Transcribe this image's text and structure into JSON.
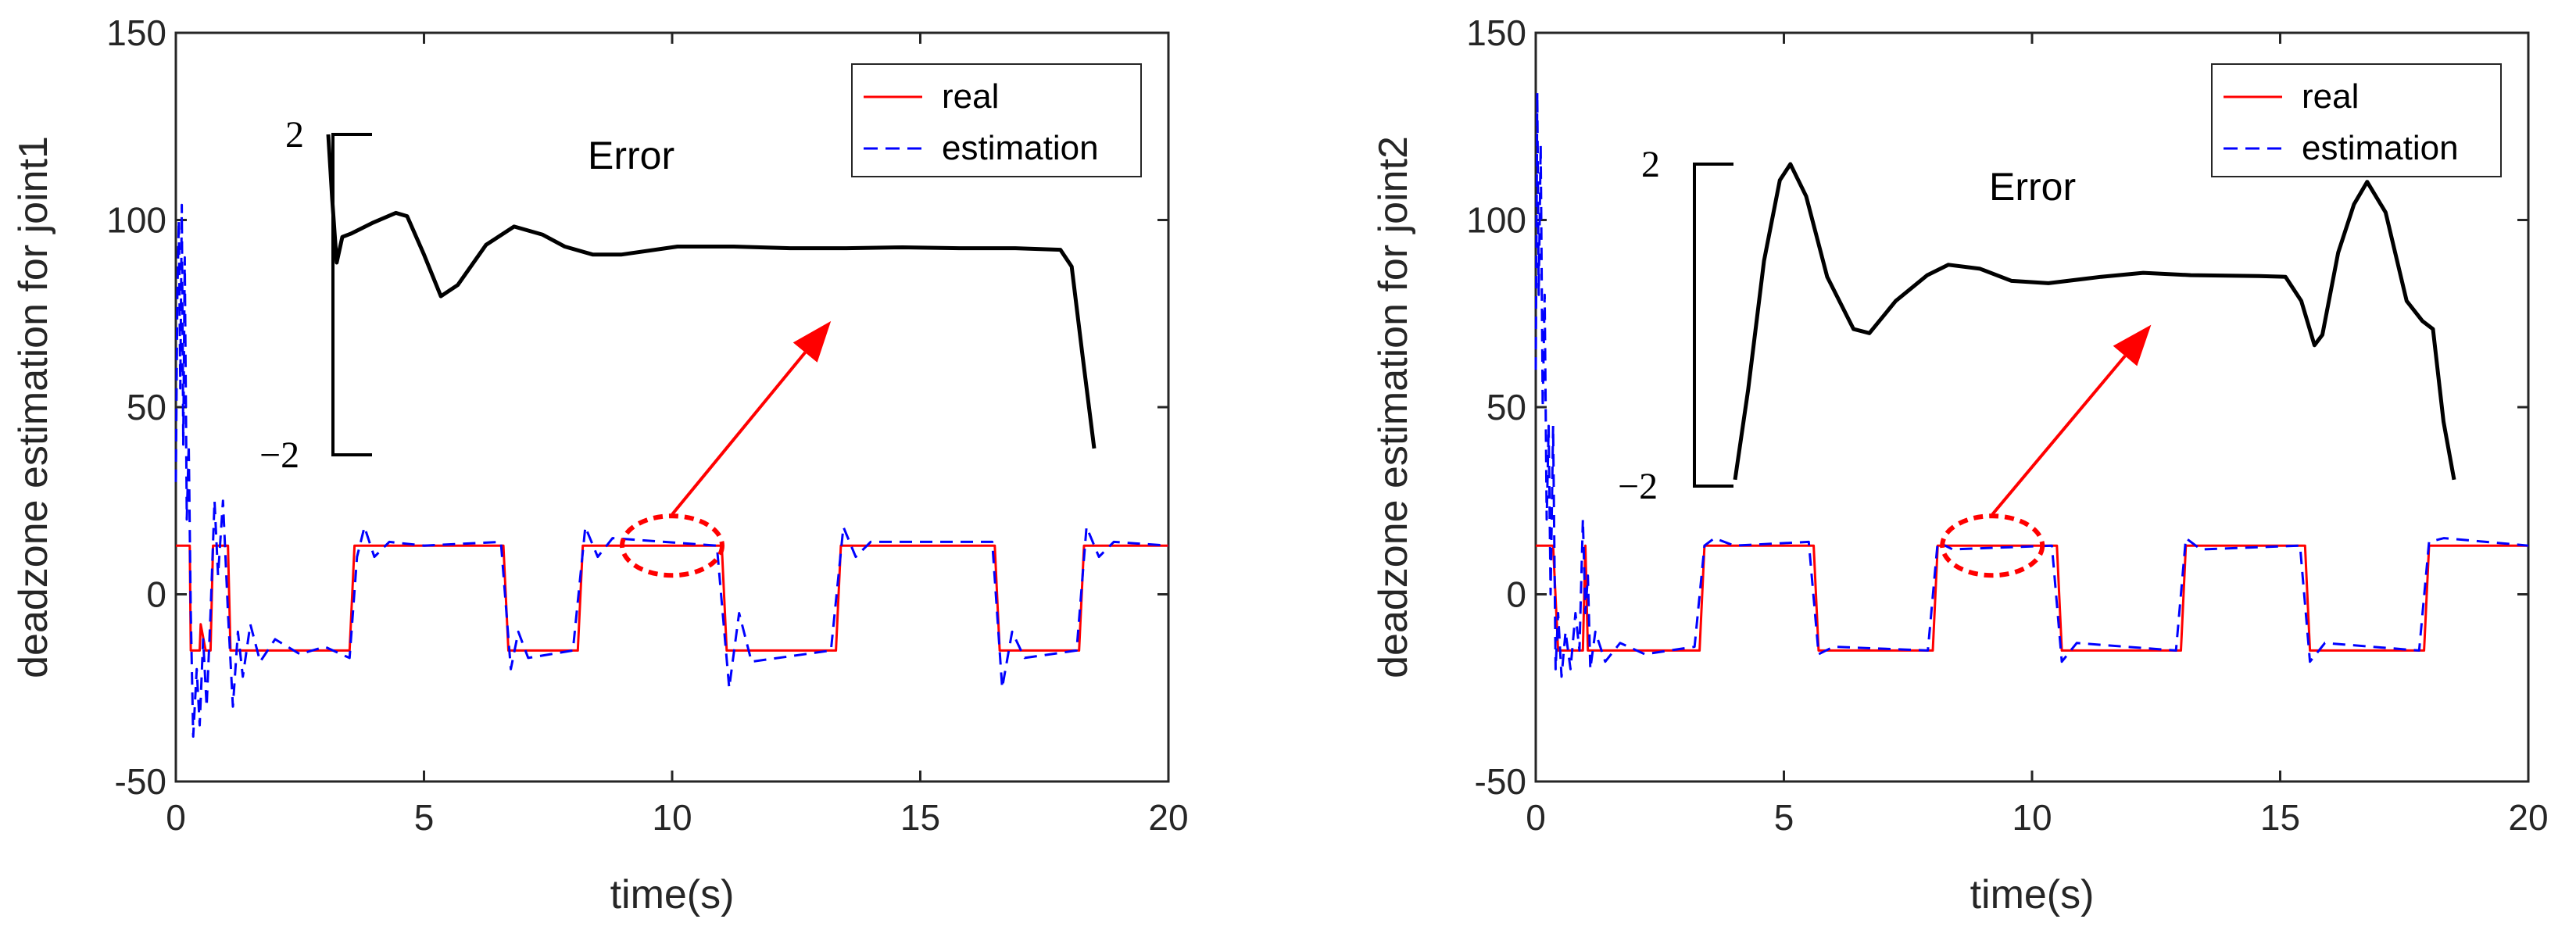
{
  "chart_data": [
    {
      "type": "line",
      "ylabel": "deadzone estimation for joint1",
      "xlabel": "time(s)",
      "xlim": [
        0,
        20
      ],
      "ylim": [
        -50,
        150
      ],
      "xticks": [
        "0",
        "5",
        "10",
        "15",
        "20"
      ],
      "yticks": [
        "-50",
        "0",
        "50",
        "100",
        "150"
      ],
      "legend": [
        "real",
        "estimation"
      ],
      "legend_position": "top-right",
      "colors": {
        "real": "#ff0000",
        "estimation": "#0000ff",
        "error": "#000000",
        "arrow": "#ff0000"
      },
      "series": [
        {
          "name": "real",
          "style": "solid",
          "points": [
            [
              0,
              13
            ],
            [
              0.28,
              13
            ],
            [
              0.3,
              -15
            ],
            [
              0.48,
              -15
            ],
            [
              0.5,
              -8
            ],
            [
              0.6,
              -15
            ],
            [
              0.7,
              -15
            ],
            [
              0.75,
              13
            ],
            [
              1.05,
              13
            ],
            [
              1.1,
              -15
            ],
            [
              3.5,
              -15
            ],
            [
              3.6,
              13
            ],
            [
              6.6,
              13
            ],
            [
              6.7,
              -15
            ],
            [
              8.1,
              -15
            ],
            [
              8.2,
              13
            ],
            [
              11.0,
              13
            ],
            [
              11.1,
              -15
            ],
            [
              13.3,
              -15
            ],
            [
              13.4,
              13
            ],
            [
              16.5,
              13
            ],
            [
              16.6,
              -15
            ],
            [
              18.2,
              -15
            ],
            [
              18.3,
              13
            ],
            [
              20,
              13
            ]
          ]
        },
        {
          "name": "estimation",
          "style": "dashed",
          "points": [
            [
              0,
              30
            ],
            [
              0.03,
              80
            ],
            [
              0.06,
              100
            ],
            [
              0.09,
              55
            ],
            [
              0.12,
              104
            ],
            [
              0.15,
              40
            ],
            [
              0.18,
              90
            ],
            [
              0.22,
              20
            ],
            [
              0.26,
              40
            ],
            [
              0.3,
              -5
            ],
            [
              0.35,
              -38
            ],
            [
              0.42,
              -20
            ],
            [
              0.48,
              -35
            ],
            [
              0.55,
              -12
            ],
            [
              0.62,
              -30
            ],
            [
              0.7,
              -5
            ],
            [
              0.78,
              25
            ],
            [
              0.85,
              5
            ],
            [
              0.95,
              25
            ],
            [
              1.05,
              -5
            ],
            [
              1.15,
              -30
            ],
            [
              1.25,
              -10
            ],
            [
              1.35,
              -22
            ],
            [
              1.5,
              -8
            ],
            [
              1.7,
              -18
            ],
            [
              2.0,
              -12
            ],
            [
              2.5,
              -16
            ],
            [
              3.0,
              -14
            ],
            [
              3.5,
              -17
            ],
            [
              3.65,
              10
            ],
            [
              3.8,
              18
            ],
            [
              4.0,
              10
            ],
            [
              4.3,
              14
            ],
            [
              5,
              13
            ],
            [
              6.55,
              14
            ],
            [
              6.75,
              -20
            ],
            [
              6.9,
              -10
            ],
            [
              7.1,
              -17
            ],
            [
              8.0,
              -15
            ],
            [
              8.25,
              18
            ],
            [
              8.5,
              10
            ],
            [
              8.8,
              15
            ],
            [
              10.9,
              13
            ],
            [
              11.15,
              -25
            ],
            [
              11.35,
              -5
            ],
            [
              11.6,
              -18
            ],
            [
              13.2,
              -15
            ],
            [
              13.45,
              18
            ],
            [
              13.7,
              10
            ],
            [
              14,
              14
            ],
            [
              16.45,
              14
            ],
            [
              16.65,
              -25
            ],
            [
              16.85,
              -10
            ],
            [
              17.1,
              -17
            ],
            [
              18.15,
              -15
            ],
            [
              18.35,
              18
            ],
            [
              18.6,
              10
            ],
            [
              18.9,
              14
            ],
            [
              20,
              13
            ]
          ]
        }
      ],
      "inset": {
        "title": "Error",
        "scale_top": "2",
        "scale_bottom": "−2",
        "yrange": [
          -2,
          2
        ],
        "values": [
          [
            4.8,
            2.0
          ],
          [
            4.87,
            1.2
          ],
          [
            4.95,
            0.4
          ],
          [
            5.05,
            0.72
          ],
          [
            5.2,
            0.76
          ],
          [
            5.6,
            0.9
          ],
          [
            6.0,
            1.02
          ],
          [
            6.2,
            0.98
          ],
          [
            6.5,
            0.5
          ],
          [
            6.8,
            -0.02
          ],
          [
            7.1,
            0.12
          ],
          [
            7.6,
            0.62
          ],
          [
            8.1,
            0.85
          ],
          [
            8.6,
            0.75
          ],
          [
            9.0,
            0.6
          ],
          [
            9.5,
            0.5
          ],
          [
            10,
            0.5
          ],
          [
            11,
            0.6
          ],
          [
            12,
            0.6
          ],
          [
            13,
            0.58
          ],
          [
            14,
            0.58
          ],
          [
            15,
            0.59
          ],
          [
            16,
            0.58
          ],
          [
            17,
            0.58
          ],
          [
            17.8,
            0.56
          ],
          [
            18.0,
            0.35
          ],
          [
            18.2,
            -0.8
          ],
          [
            18.4,
            -1.92
          ]
        ]
      },
      "annotation": {
        "ellipse_center": [
          10,
          13
        ],
        "arrow_to": [
          13.2,
          73
        ]
      }
    },
    {
      "type": "line",
      "ylabel": "deadzone estimation for joint2",
      "xlabel": "time(s)",
      "xlim": [
        0,
        20
      ],
      "ylim": [
        -50,
        150
      ],
      "xticks": [
        "0",
        "5",
        "10",
        "15",
        "20"
      ],
      "yticks": [
        "-50",
        "0",
        "50",
        "100",
        "150"
      ],
      "legend": [
        "real",
        "estimation"
      ],
      "legend_position": "top-right",
      "colors": {
        "real": "#ff0000",
        "estimation": "#0000ff",
        "error": "#000000",
        "arrow": "#ff0000"
      },
      "series": [
        {
          "name": "real",
          "style": "solid",
          "points": [
            [
              0,
              13
            ],
            [
              0.35,
              13
            ],
            [
              0.45,
              -15
            ],
            [
              0.95,
              -15
            ],
            [
              1.0,
              13
            ],
            [
              1.05,
              -15
            ],
            [
              3.3,
              -15
            ],
            [
              3.4,
              13
            ],
            [
              5.6,
              13
            ],
            [
              5.7,
              -15
            ],
            [
              8.0,
              -15
            ],
            [
              8.1,
              13
            ],
            [
              10.5,
              13
            ],
            [
              10.6,
              -15
            ],
            [
              13.0,
              -15
            ],
            [
              13.1,
              13
            ],
            [
              15.5,
              13
            ],
            [
              15.6,
              -15
            ],
            [
              17.9,
              -15
            ],
            [
              18.0,
              13
            ],
            [
              20,
              13
            ]
          ]
        },
        {
          "name": "estimation",
          "style": "dashed",
          "points": [
            [
              0,
              60
            ],
            [
              0.03,
              134
            ],
            [
              0.06,
              80
            ],
            [
              0.1,
              120
            ],
            [
              0.14,
              50
            ],
            [
              0.18,
              80
            ],
            [
              0.22,
              20
            ],
            [
              0.26,
              45
            ],
            [
              0.3,
              0
            ],
            [
              0.35,
              45
            ],
            [
              0.4,
              -20
            ],
            [
              0.45,
              -5
            ],
            [
              0.52,
              -22
            ],
            [
              0.6,
              -10
            ],
            [
              0.7,
              -20
            ],
            [
              0.8,
              -5
            ],
            [
              0.88,
              -15
            ],
            [
              0.95,
              20
            ],
            [
              1.0,
              -5
            ],
            [
              1.05,
              5
            ],
            [
              1.1,
              -20
            ],
            [
              1.2,
              -10
            ],
            [
              1.4,
              -18
            ],
            [
              1.7,
              -13
            ],
            [
              2.2,
              -16
            ],
            [
              3.2,
              -14
            ],
            [
              3.4,
              13
            ],
            [
              3.6,
              15
            ],
            [
              4,
              13
            ],
            [
              5.5,
              14
            ],
            [
              5.7,
              -16
            ],
            [
              6,
              -14
            ],
            [
              7.9,
              -15
            ],
            [
              8.1,
              14
            ],
            [
              8.4,
              12
            ],
            [
              10.4,
              13
            ],
            [
              10.6,
              -18
            ],
            [
              10.9,
              -13
            ],
            [
              12.9,
              -15
            ],
            [
              13.1,
              15
            ],
            [
              13.4,
              12
            ],
            [
              15.4,
              13
            ],
            [
              15.6,
              -18
            ],
            [
              15.9,
              -13
            ],
            [
              17.8,
              -15
            ],
            [
              18.0,
              14
            ],
            [
              18.3,
              15
            ],
            [
              20,
              13
            ]
          ]
        }
      ],
      "inset": {
        "title": "Error",
        "scale_top": "2",
        "scale_bottom": "−2",
        "yrange": [
          -2,
          2
        ],
        "values": [
          [
            4.55,
            -1.92
          ],
          [
            4.8,
            -0.8
          ],
          [
            5.1,
            0.8
          ],
          [
            5.4,
            1.8
          ],
          [
            5.6,
            2.0
          ],
          [
            5.9,
            1.6
          ],
          [
            6.3,
            0.6
          ],
          [
            6.8,
            -0.05
          ],
          [
            7.1,
            -0.1
          ],
          [
            7.6,
            0.3
          ],
          [
            8.2,
            0.62
          ],
          [
            8.6,
            0.75
          ],
          [
            9.2,
            0.7
          ],
          [
            9.8,
            0.55
          ],
          [
            10.5,
            0.52
          ],
          [
            11.5,
            0.6
          ],
          [
            12.3,
            0.65
          ],
          [
            13.2,
            0.62
          ],
          [
            14.5,
            0.61
          ],
          [
            15.0,
            0.6
          ],
          [
            15.3,
            0.3
          ],
          [
            15.55,
            -0.25
          ],
          [
            15.7,
            -0.12
          ],
          [
            16.0,
            0.9
          ],
          [
            16.3,
            1.5
          ],
          [
            16.55,
            1.78
          ],
          [
            16.9,
            1.4
          ],
          [
            17.3,
            0.3
          ],
          [
            17.6,
            0.05
          ],
          [
            17.8,
            -0.05
          ],
          [
            18.0,
            -1.2
          ],
          [
            18.2,
            -1.92
          ]
        ]
      },
      "annotation": {
        "ellipse_center": [
          9.2,
          13
        ],
        "arrow_to": [
          12.4,
          72
        ]
      }
    }
  ]
}
